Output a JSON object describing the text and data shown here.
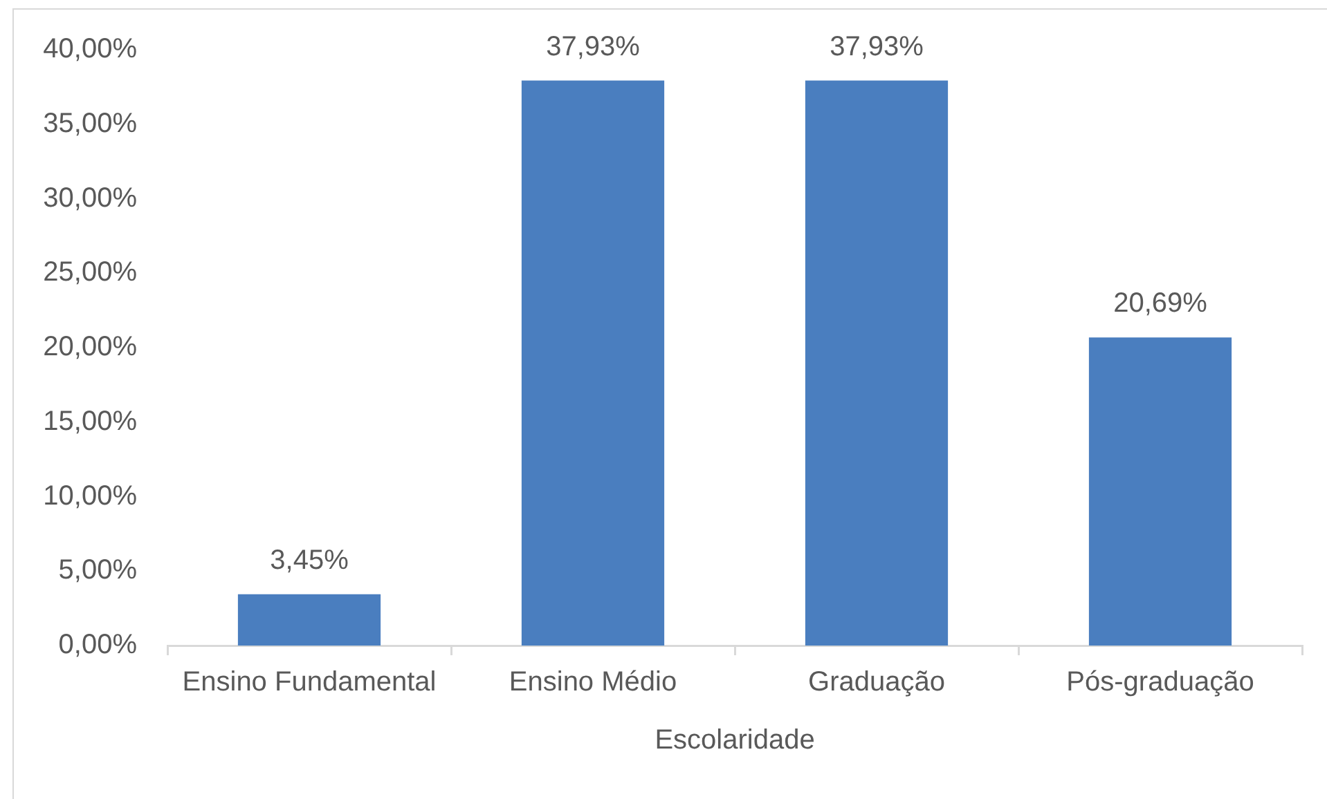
{
  "chart_data": {
    "type": "bar",
    "xlabel": "Escolaridade",
    "categories": [
      "Ensino Fundamental",
      "Ensino Médio",
      "Graduação",
      "Pós-graduação"
    ],
    "values": [
      3.45,
      37.93,
      37.93,
      20.69
    ],
    "color": "#4a7ebf",
    "value_labels": [
      "3,45%",
      "37,93%",
      "37,93%",
      "20,69%"
    ],
    "ylim": [
      0,
      40
    ],
    "yticks": [
      {
        "value": 0,
        "label": "0,00%"
      },
      {
        "value": 5,
        "label": "5,00%"
      },
      {
        "value": 10,
        "label": "10,00%"
      },
      {
        "value": 15,
        "label": "15,00%"
      },
      {
        "value": 20,
        "label": "20,00%"
      },
      {
        "value": 25,
        "label": "25,00%"
      },
      {
        "value": 30,
        "label": "30,00%"
      },
      {
        "value": 35,
        "label": "35,00%"
      },
      {
        "value": 40,
        "label": "40,00%"
      }
    ]
  }
}
